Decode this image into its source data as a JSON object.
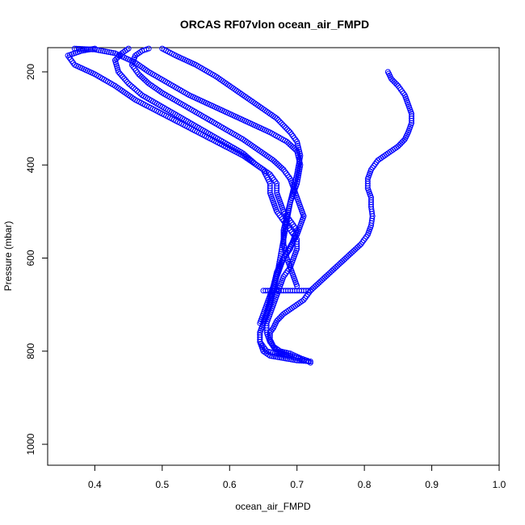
{
  "chart_data": {
    "type": "scatter",
    "title": "ORCAS RF07vlon ocean_air_FMPD",
    "xlabel": "ocean_air_FMPD",
    "ylabel": "Pressure (mbar)",
    "xlim": [
      0.33,
      1.0
    ],
    "ylim": [
      1045,
      148
    ],
    "y_reversed": true,
    "grid": false,
    "legend": "none",
    "x_ticks": [
      "0.4",
      "0.5",
      "0.6",
      "0.7",
      "0.8",
      "0.9",
      "1.0"
    ],
    "y_ticks": [
      "200",
      "400",
      "600",
      "800",
      "1000"
    ],
    "marker_color": "#0000ff",
    "series": [
      {
        "x": [
          0.37,
          0.4,
          0.43,
          0.46,
          0.48,
          0.51,
          0.54,
          0.57,
          0.6,
          0.63,
          0.66,
          0.685,
          0.7,
          0.705,
          0.7,
          0.69,
          0.685,
          0.68,
          0.675,
          0.67,
          0.665,
          0.66,
          0.655,
          0.65,
          0.645,
          0.645,
          0.65,
          0.66,
          0.68,
          0.7,
          0.72
        ],
        "y": [
          150,
          152,
          160,
          180,
          200,
          225,
          250,
          270,
          290,
          310,
          330,
          350,
          370,
          400,
          440,
          480,
          520,
          560,
          600,
          640,
          670,
          700,
          720,
          740,
          760,
          780,
          800,
          810,
          815,
          820,
          822
        ]
      },
      {
        "x": [
          0.4,
          0.38,
          0.36,
          0.37,
          0.4,
          0.43,
          0.46,
          0.5,
          0.54,
          0.58,
          0.62,
          0.65,
          0.66,
          0.66,
          0.665,
          0.67,
          0.68,
          0.69,
          0.7,
          0.7,
          0.695,
          0.69,
          0.68,
          0.675,
          0.67,
          0.665,
          0.66,
          0.655,
          0.655,
          0.66,
          0.67,
          0.69,
          0.71
        ],
        "y": [
          150,
          155,
          165,
          185,
          205,
          230,
          260,
          290,
          320,
          350,
          380,
          410,
          440,
          460,
          480,
          500,
          520,
          540,
          560,
          580,
          600,
          620,
          640,
          660,
          680,
          700,
          720,
          740,
          760,
          780,
          800,
          810,
          820
        ]
      },
      {
        "x": [
          0.45,
          0.44,
          0.43,
          0.435,
          0.45,
          0.47,
          0.5,
          0.53,
          0.56,
          0.59,
          0.62,
          0.64,
          0.66,
          0.67,
          0.67,
          0.675,
          0.68,
          0.69,
          0.7,
          0.695,
          0.69,
          0.68,
          0.675,
          0.67,
          0.665,
          0.66,
          0.655,
          0.65,
          0.645
        ],
        "y": [
          150,
          160,
          175,
          200,
          225,
          250,
          275,
          300,
          325,
          350,
          375,
          400,
          420,
          440,
          460,
          480,
          500,
          520,
          540,
          560,
          580,
          600,
          620,
          640,
          660,
          680,
          700,
          720,
          740
        ]
      },
      {
        "x": [
          0.48,
          0.47,
          0.46,
          0.455,
          0.465,
          0.48,
          0.5,
          0.53,
          0.56,
          0.59,
          0.62,
          0.645,
          0.665,
          0.68,
          0.69,
          0.695,
          0.7,
          0.705,
          0.71,
          0.705,
          0.7,
          0.69,
          0.68,
          0.67,
          0.665,
          0.66,
          0.655,
          0.65,
          0.645,
          0.645,
          0.655,
          0.67,
          0.69
        ],
        "y": [
          150,
          155,
          165,
          185,
          205,
          225,
          245,
          270,
          295,
          320,
          345,
          370,
          390,
          410,
          430,
          450,
          470,
          490,
          510,
          530,
          550,
          575,
          600,
          630,
          660,
          690,
          720,
          740,
          760,
          780,
          800,
          805,
          810
        ]
      },
      {
        "x": [
          0.5,
          0.52,
          0.55,
          0.58,
          0.61,
          0.64,
          0.67,
          0.69,
          0.7,
          0.705,
          0.7,
          0.695,
          0.69,
          0.685,
          0.68,
          0.68,
          0.685,
          0.69,
          0.695,
          0.7
        ],
        "y": [
          150,
          165,
          185,
          210,
          240,
          270,
          300,
          330,
          350,
          380,
          420,
          450,
          480,
          510,
          540,
          570,
          600,
          620,
          640,
          660
        ]
      },
      {
        "x": [
          0.835,
          0.84,
          0.85,
          0.86,
          0.865,
          0.87,
          0.87,
          0.865,
          0.86,
          0.85,
          0.835,
          0.82,
          0.81,
          0.805,
          0.805,
          0.81,
          0.81,
          0.812,
          0.81,
          0.805,
          0.795,
          0.78,
          0.765,
          0.75,
          0.735,
          0.72,
          0.71,
          0.7,
          0.69,
          0.68,
          0.67,
          0.665,
          0.66,
          0.66,
          0.665,
          0.675,
          0.69,
          0.705,
          0.715,
          0.72
        ],
        "y": [
          200,
          215,
          230,
          250,
          270,
          290,
          310,
          330,
          345,
          360,
          375,
          390,
          410,
          430,
          450,
          470,
          490,
          510,
          530,
          550,
          570,
          590,
          610,
          630,
          650,
          670,
          690,
          700,
          710,
          720,
          735,
          750,
          760,
          775,
          790,
          800,
          805,
          815,
          820,
          825
        ]
      },
      {
        "x": [
          0.65,
          0.66,
          0.67,
          0.68,
          0.69,
          0.7,
          0.71,
          0.72
        ],
        "y": [
          670,
          670,
          670,
          670,
          670,
          670,
          670,
          670
        ]
      }
    ]
  }
}
